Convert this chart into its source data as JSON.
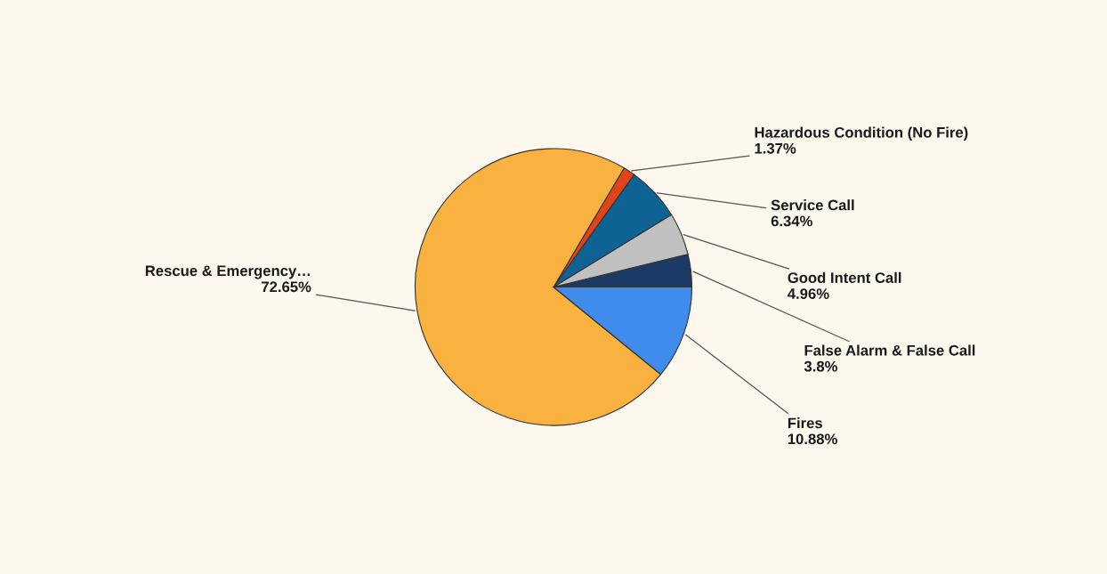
{
  "chart_data": {
    "type": "pie",
    "categories": [
      "False Alarm & False Call",
      "Good Intent Call",
      "Service Call",
      "Hazardous Condition (No Fire)",
      "Rescue & Emergency…",
      "Fires"
    ],
    "values": [
      3.8,
      4.96,
      6.34,
      1.37,
      72.65,
      10.88
    ],
    "value_labels": [
      "3.8%",
      "4.96%",
      "6.34%",
      "1.37%",
      "72.65%",
      "10.88%"
    ],
    "colors": [
      "#1b3a66",
      "#c0c0c0",
      "#0f6394",
      "#e0441a",
      "#f9b13f",
      "#3f8ced"
    ]
  }
}
